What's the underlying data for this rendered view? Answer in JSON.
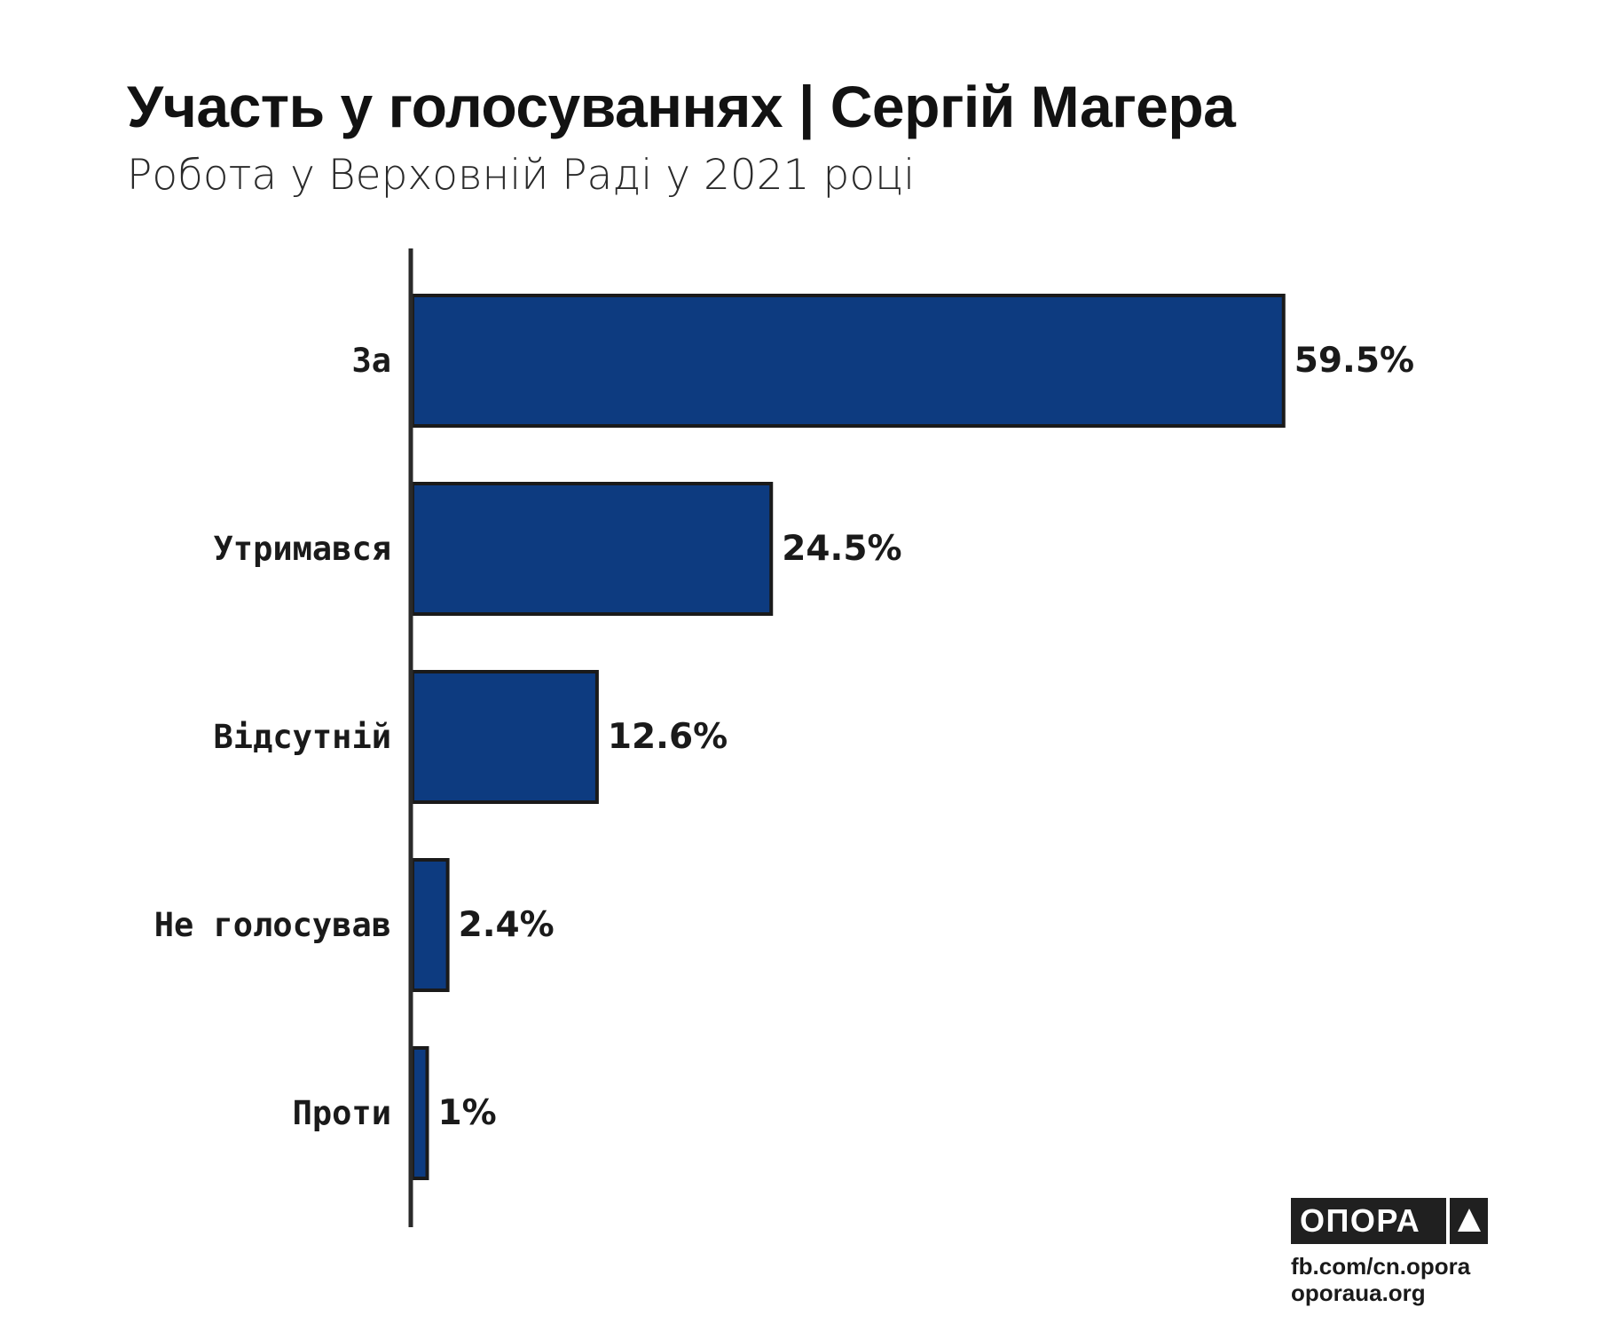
{
  "header": {
    "title": "Участь у голосуваннях | Сергій Магера",
    "subtitle": "Робота у Верховній Раді у 2021 році"
  },
  "chart_data": {
    "type": "bar",
    "orientation": "horizontal",
    "title": "Участь у голосуваннях | Сергій Магера",
    "subtitle": "Робота у Верховній Раді у 2021 році",
    "categories": [
      "За",
      "Утримався",
      "Відсутній",
      "Не голосував",
      "Проти"
    ],
    "values": [
      59.5,
      24.5,
      12.6,
      2.4,
      1
    ],
    "value_labels": [
      "59.5%",
      "24.5%",
      "12.6%",
      "2.4%",
      "1%"
    ],
    "xlabel": "",
    "ylabel": "",
    "xlim": [
      0,
      100
    ],
    "grid": false,
    "legend": "none",
    "bar_color": "#0d3b80",
    "bar_edge_color": "#1a1a1a"
  },
  "branding": {
    "logo_text": "ОПОРА",
    "logo_icon": "triangle-icon",
    "facebook": "fb.com/cn.opora",
    "website": "oporaua.org"
  }
}
